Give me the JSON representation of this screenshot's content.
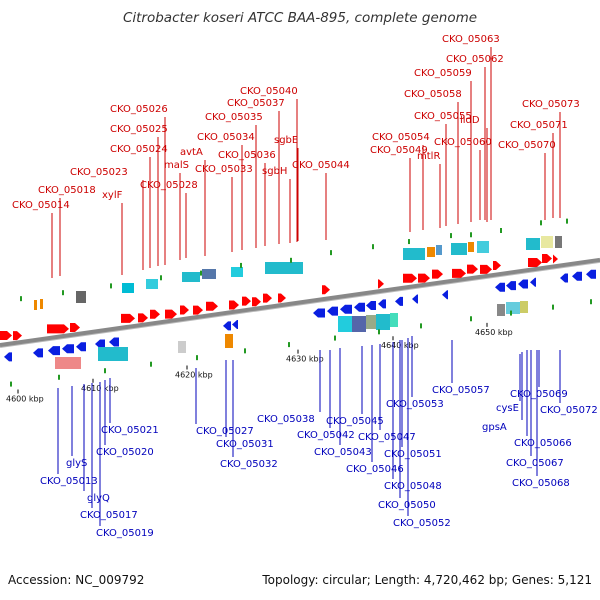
{
  "title": "Citrobacter koseri ATCC BAA-895, complete genome",
  "footer": {
    "accession": "Accession: NC_009792",
    "topology": "Topology: circular; Length: 4,720,462 bp; Genes: 5,121"
  },
  "colors": {
    "forward_label": "#cc0000",
    "reverse_label": "#0000bb",
    "forward_gene": "#ff0000",
    "reverse_gene": "#0a1fe0",
    "backbone": "#888888"
  },
  "scale_labels": [
    "4600 kbp",
    "4610 kbp",
    "4620 kbp",
    "4630 kbp",
    "4640 kbp",
    "4650 kbp"
  ],
  "forward_labels": [
    "CKO_05014",
    "CKO_05018",
    "xylF",
    "CKO_05023",
    "CKO_05024",
    "CKO_05025",
    "CKO_05026",
    "malS",
    "CKO_05028",
    "avtA",
    "CKO_05033",
    "CKO_05034",
    "CKO_05035",
    "CKO_05036",
    "CKO_05037",
    "CKO_05040",
    "sgbH",
    "sgbE",
    "CKO_05044",
    "CKO_05049",
    "CKO_05054",
    "mtlR",
    "CKO_05055",
    "CKO_05058",
    "CKO_05059",
    "CKO_05060",
    "lldD",
    "CKO_05062",
    "CKO_05063",
    "CKO_05070",
    "CKO_05071",
    "CKO_05073"
  ],
  "reverse_labels": [
    "CKO_05013",
    "glyS",
    "glyQ",
    "CKO_05017",
    "CKO_05019",
    "CKO_05020",
    "CKO_05021",
    "CKO_05027",
    "CKO_05031",
    "CKO_05032",
    "CKO_05038",
    "CKO_05042",
    "CKO_05043",
    "CKO_05045",
    "CKO_05046",
    "CKO_05047",
    "CKO_05048",
    "CKO_05050",
    "CKO_05051",
    "CKO_05052",
    "CKO_05053",
    "CKO_05057",
    "cysE",
    "gpsA",
    "CKO_05066",
    "CKO_05067",
    "CKO_05068",
    "CKO_05069",
    "CKO_05072"
  ]
}
